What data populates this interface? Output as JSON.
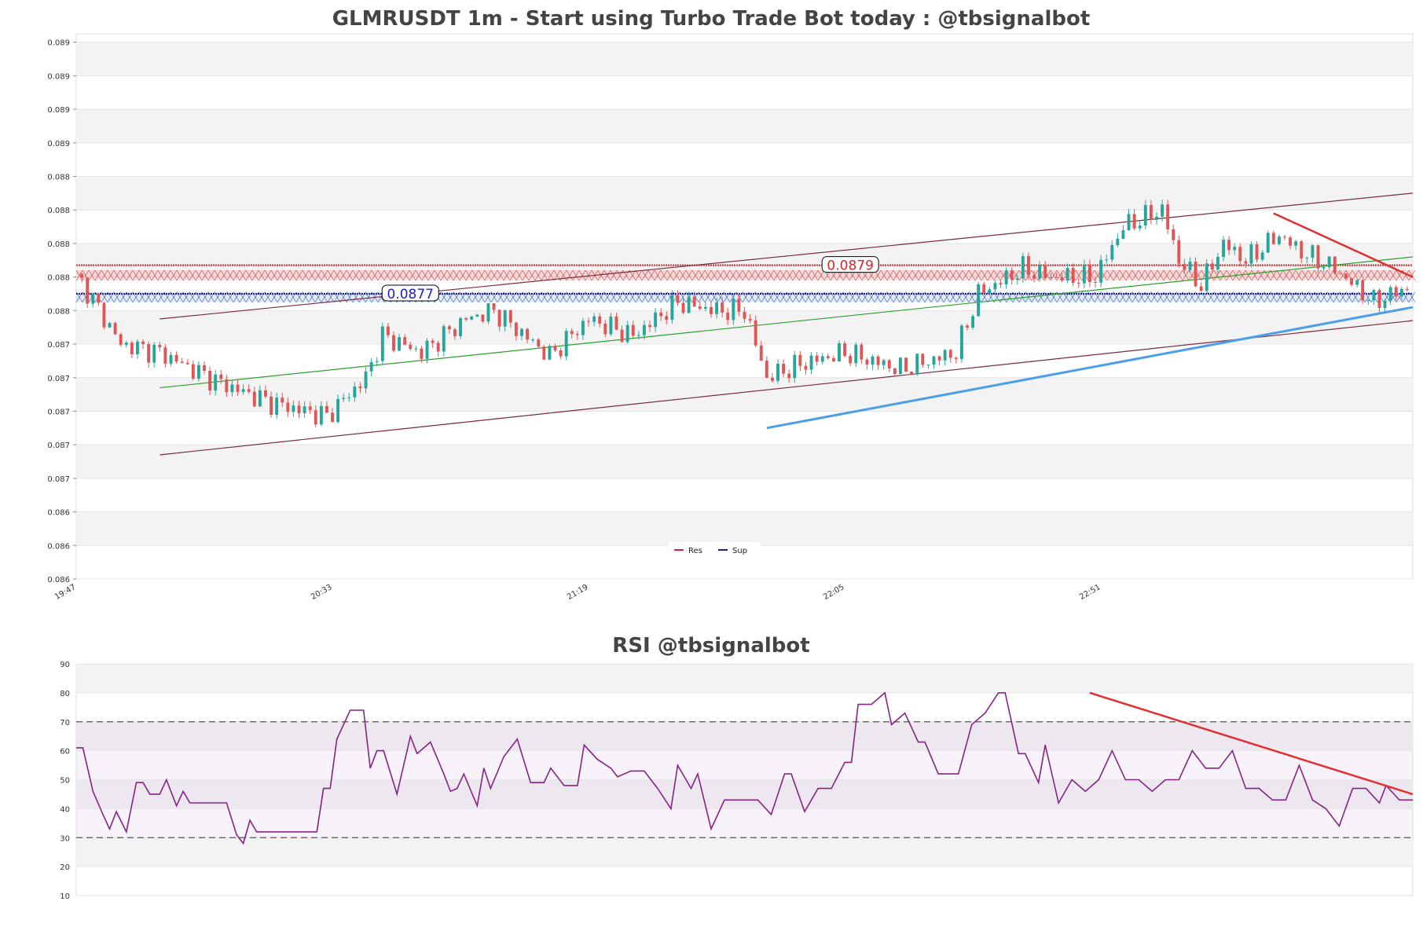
{
  "chart_data": [
    {
      "type": "candlestick",
      "title": "GLMRUSDT 1m - Start using Turbo Trade Bot today : @tbsignalbot",
      "ylim": [
        0.086,
        0.08925
      ],
      "yticks": [
        {
          "v": 0.086,
          "label": "0.086"
        },
        {
          "v": 0.0862,
          "label": "0.086"
        },
        {
          "v": 0.0864,
          "label": "0.086"
        },
        {
          "v": 0.0866,
          "label": "0.087"
        },
        {
          "v": 0.0868,
          "label": "0.087"
        },
        {
          "v": 0.087,
          "label": "0.087"
        },
        {
          "v": 0.0872,
          "label": "0.087"
        },
        {
          "v": 0.0874,
          "label": "0.087"
        },
        {
          "v": 0.0876,
          "label": "0.088"
        },
        {
          "v": 0.0878,
          "label": "0.088"
        },
        {
          "v": 0.088,
          "label": "0.088"
        },
        {
          "v": 0.0882,
          "label": "0.088"
        },
        {
          "v": 0.0884,
          "label": "0.088"
        },
        {
          "v": 0.0886,
          "label": "0.089"
        },
        {
          "v": 0.0888,
          "label": "0.089"
        },
        {
          "v": 0.089,
          "label": "0.089"
        },
        {
          "v": 0.0892,
          "label": "0.089"
        }
      ],
      "xrange": [
        0,
        240
      ],
      "xticks": [
        {
          "i": 0,
          "label": "19:47"
        },
        {
          "i": 46,
          "label": "20:33"
        },
        {
          "i": 92,
          "label": "21:19"
        },
        {
          "i": 138,
          "label": "22:05"
        },
        {
          "i": 184,
          "label": "22:51"
        }
      ],
      "resistance_level": 0.08787,
      "resistance_label": "0.0879",
      "support_level": 0.0877,
      "support_label": "0.0877",
      "res_zone": [
        0.08778,
        0.08784
      ],
      "sup_zone": [
        0.08765,
        0.08771
      ],
      "legend": [
        {
          "name": "Res",
          "color": "#d62728"
        },
        {
          "name": "Sup",
          "color": "#1f1f9f"
        }
      ],
      "channel_upper": [
        [
          15,
          0.08755
        ],
        [
          240,
          0.0883
        ]
      ],
      "channel_lower": [
        [
          15,
          0.08674
        ],
        [
          240,
          0.08754
        ]
      ],
      "channel_mid": [
        [
          15,
          0.08714
        ],
        [
          240,
          0.08792
        ]
      ],
      "downtrend_line": [
        [
          215,
          0.08818
        ],
        [
          240,
          0.0878
        ]
      ],
      "uptrend_line": [
        [
          124,
          0.0869
        ],
        [
          240,
          0.08762
        ]
      ],
      "colors": {
        "up": "#26a69a",
        "down": "#e05555",
        "channel": "#7a2a3a",
        "mid": "#2ca02c",
        "support_trend": "#4a9fe8",
        "resist_trend": "#e03030"
      }
    },
    {
      "type": "line",
      "title": "RSI @tbsignalbot",
      "ylim": [
        10,
        90
      ],
      "yticks": [
        10,
        20,
        30,
        40,
        50,
        60,
        70,
        80,
        90
      ],
      "overbought": 70,
      "oversold": 30,
      "series": [
        {
          "name": "RSI",
          "color": "#882288"
        }
      ],
      "trend_line": [
        [
          182,
          80
        ],
        [
          240,
          45
        ]
      ]
    }
  ]
}
